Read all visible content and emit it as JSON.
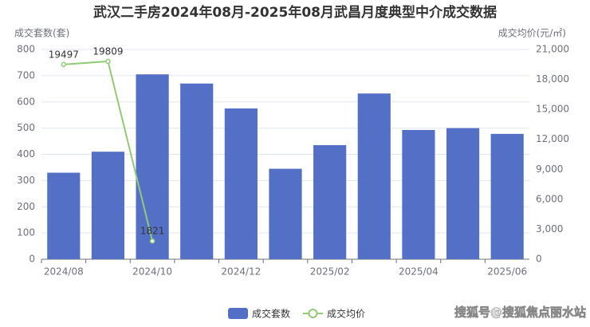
{
  "chart_data": {
    "type": "bar_line",
    "title": "武汉二手房2024年08月-2025年08月武昌月度典型中介成交数据",
    "y_label": "成交套数(套)",
    "y2_label": "成交均价(元/㎡)",
    "categories": [
      "2024/08",
      null,
      "2024/10",
      null,
      "2024/12",
      null,
      "2025/02",
      null,
      "2025/04",
      null,
      "2025/06"
    ],
    "series": [
      {
        "name": "成交套数",
        "type": "bar",
        "color": "#5470c6",
        "values": [
          330,
          410,
          705,
          670,
          575,
          345,
          435,
          632,
          493,
          500,
          478
        ]
      },
      {
        "name": "成交均价",
        "type": "line",
        "axis": "y2",
        "color": "#91cc75",
        "values": [
          19497,
          19809,
          1821,
          null,
          null,
          null,
          null,
          null,
          null,
          null,
          null
        ]
      }
    ],
    "ylim": [
      0,
      800
    ],
    "yticks": [
      0,
      100,
      200,
      300,
      400,
      500,
      600,
      700,
      800
    ],
    "y2lim": [
      0,
      21000
    ],
    "y2ticks": [
      0,
      {
        "value": 3000,
        "label": "3,000"
      },
      {
        "value": 6000,
        "label": "6,000"
      },
      {
        "value": 9000,
        "label": "9,000"
      },
      {
        "value": 12000,
        "label": "12,000"
      },
      {
        "value": 15000,
        "label": "15,000"
      },
      {
        "value": 18000,
        "label": "18,000"
      },
      {
        "value": 21000,
        "label": "21,000"
      }
    ],
    "grid": true,
    "legend": "bottom",
    "watermark": "搜狐号@搜狐焦点丽水站"
  }
}
